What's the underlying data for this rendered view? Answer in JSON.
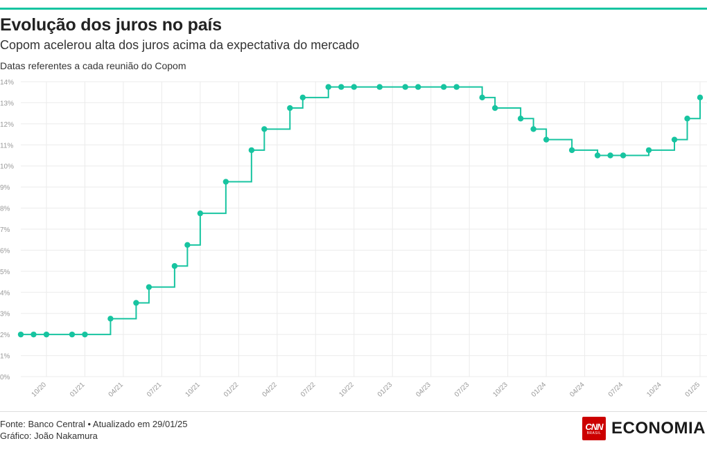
{
  "header": {
    "title": "Evolução dos juros no país",
    "subtitle": "Copom acelerou alta dos juros acima da expectativa do mercado",
    "note": "Datas referentes a cada reunião do Copom"
  },
  "footer": {
    "source": "Fonte: Banco Central • Atualizado em 29/01/25",
    "credit": "Gráfico: João Nakamura",
    "logo_cnn": "CNN",
    "logo_brasil": "BRASIL",
    "logo_economia_a": "ECONOM",
    "logo_economia_b": "IA"
  },
  "colors": {
    "accent": "#17c4a0",
    "grid": "#ebebeb",
    "tick": "#999999"
  },
  "chart_data": {
    "type": "line",
    "step": true,
    "x_unit": "month",
    "x": [
      "2020-08",
      "2020-09",
      "2020-10",
      "2020-12",
      "2021-01",
      "2021-03",
      "2021-05",
      "2021-06",
      "2021-08",
      "2021-09",
      "2021-10",
      "2021-12",
      "2022-02",
      "2022-03",
      "2022-05",
      "2022-06",
      "2022-08",
      "2022-09",
      "2022-10",
      "2022-12",
      "2023-02",
      "2023-03",
      "2023-05",
      "2023-06",
      "2023-08",
      "2023-09",
      "2023-11",
      "2023-12",
      "2024-01",
      "2024-03",
      "2024-05",
      "2024-06",
      "2024-07",
      "2024-09",
      "2024-11",
      "2024-12",
      "2025-01"
    ],
    "values": [
      2.0,
      2.0,
      2.0,
      2.0,
      2.0,
      2.75,
      3.5,
      4.25,
      5.25,
      6.25,
      7.75,
      9.25,
      10.75,
      11.75,
      12.75,
      13.25,
      13.75,
      13.75,
      13.75,
      13.75,
      13.75,
      13.75,
      13.75,
      13.75,
      13.25,
      12.75,
      12.25,
      11.75,
      11.25,
      10.75,
      10.5,
      10.5,
      10.5,
      10.75,
      11.25,
      12.25,
      13.25
    ],
    "y_ticks": [
      "0%",
      "1%",
      "2%",
      "3%",
      "4%",
      "5%",
      "6%",
      "7%",
      "8%",
      "9%",
      "10%",
      "11%",
      "12%",
      "13%",
      "14%"
    ],
    "ylim": [
      0,
      14
    ],
    "x_ticks": [
      "10/20",
      "01/21",
      "04/21",
      "07/21",
      "10/21",
      "01/22",
      "04/22",
      "07/22",
      "10/22",
      "01/23",
      "04/23",
      "07/23",
      "10/23",
      "01/24",
      "04/24",
      "07/24",
      "10/24",
      "01/25"
    ],
    "x_tick_values": [
      "2020-10",
      "2021-01",
      "2021-04",
      "2021-07",
      "2021-10",
      "2022-01",
      "2022-04",
      "2022-07",
      "2022-10",
      "2023-01",
      "2023-04",
      "2023-07",
      "2023-10",
      "2024-01",
      "2024-04",
      "2024-07",
      "2024-10",
      "2025-01"
    ],
    "grid": true,
    "xlabel": "",
    "ylabel": ""
  }
}
